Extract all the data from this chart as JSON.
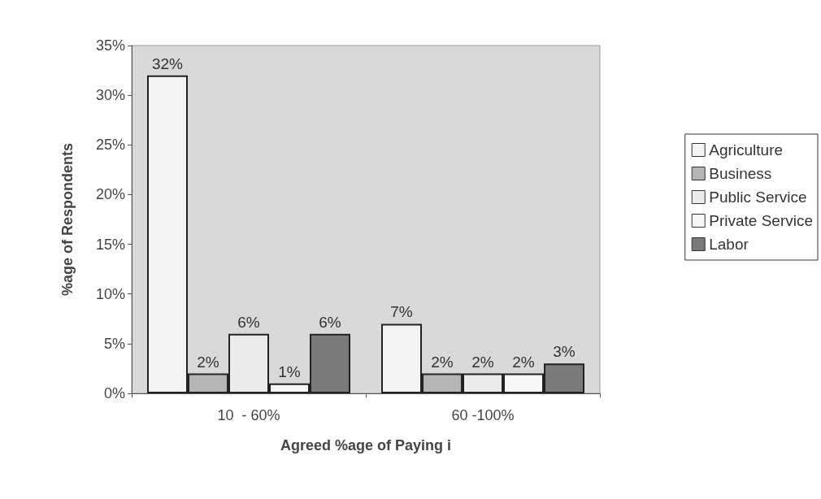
{
  "chart_data": {
    "type": "bar",
    "xlabel": "Agreed %age of Paying i",
    "ylabel": "%age of Respondents",
    "categories": [
      "10  - 60%",
      "60 -100%"
    ],
    "series": [
      {
        "name": "Agriculture",
        "color": "#f4f4f4",
        "values": [
          32,
          7
        ],
        "value_labels": [
          "32%",
          "7%"
        ]
      },
      {
        "name": "Business",
        "color": "#b5b5b5",
        "values": [
          2,
          2
        ],
        "value_labels": [
          "2%",
          "2%"
        ]
      },
      {
        "name": "Public Service",
        "color": "#ececec",
        "values": [
          6,
          2
        ],
        "value_labels": [
          "6%",
          "2%"
        ]
      },
      {
        "name": "Private Service",
        "color": "#f7f7f7",
        "values": [
          1,
          2
        ],
        "value_labels": [
          "1%",
          "2%"
        ]
      },
      {
        "name": "Labor",
        "color": "#7a7a7a",
        "values": [
          6,
          3
        ],
        "value_labels": [
          "6%",
          "3%"
        ]
      }
    ],
    "ylim": [
      0,
      35
    ],
    "yticks": [
      {
        "value": 0,
        "label": "0%"
      },
      {
        "value": 5,
        "label": "5%"
      },
      {
        "value": 10,
        "label": "10%"
      },
      {
        "value": 15,
        "label": "15%"
      },
      {
        "value": 20,
        "label": "20%"
      },
      {
        "value": 25,
        "label": "25%"
      },
      {
        "value": 30,
        "label": "30%"
      },
      {
        "value": 35,
        "label": "35%"
      }
    ],
    "grid": false,
    "legend": "right"
  }
}
